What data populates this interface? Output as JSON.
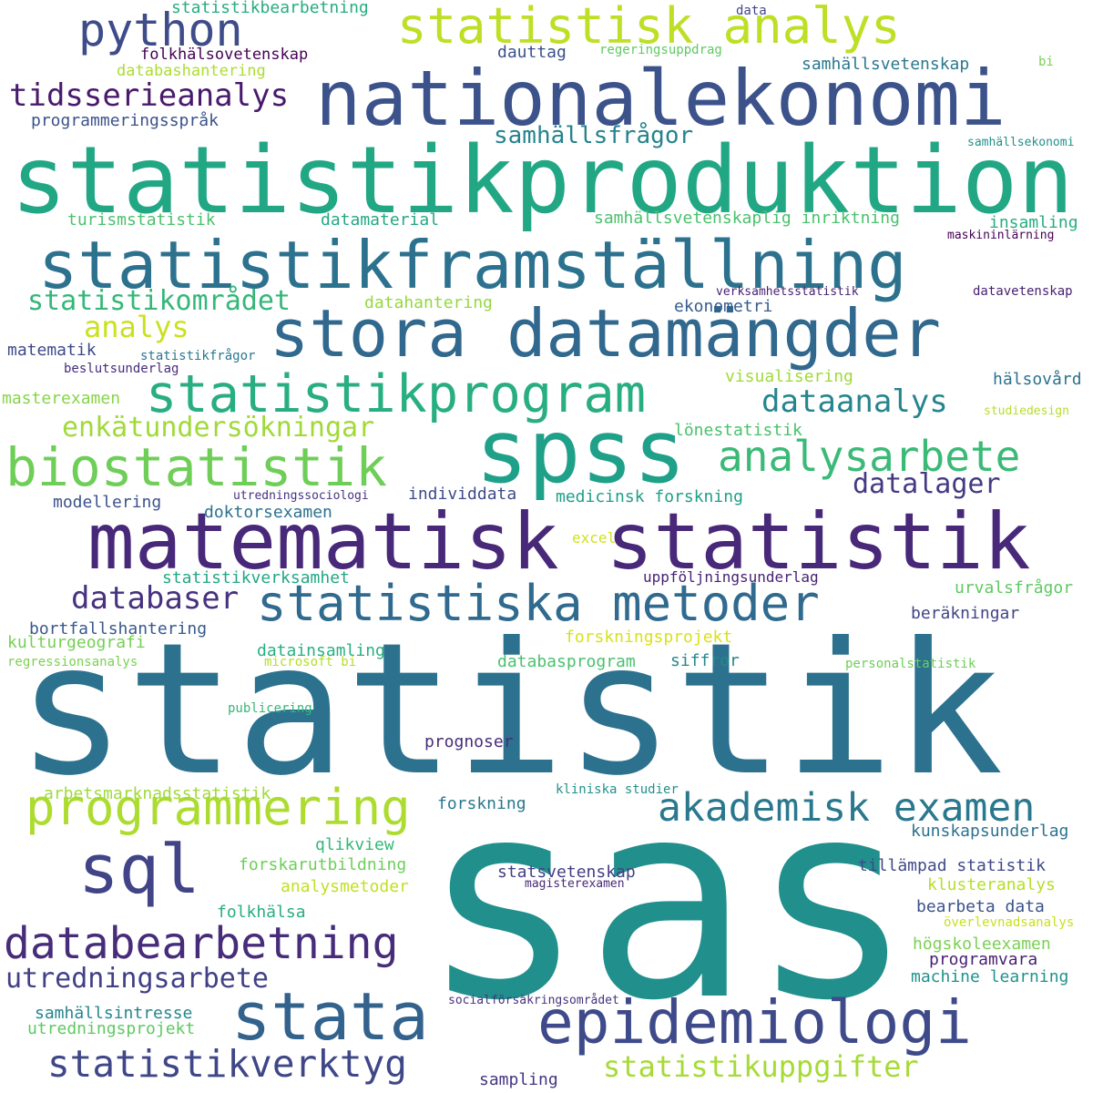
{
  "words": [
    {
      "text": "statistik",
      "color": "#2c728e"
    },
    {
      "text": "sas",
      "color": "#21908d"
    },
    {
      "text": "statistikproduktion",
      "color": "#22a785"
    },
    {
      "text": "nationalekonomi",
      "color": "#3b528b"
    },
    {
      "text": "spss",
      "color": "#1fa088"
    },
    {
      "text": "matematisk statistik",
      "color": "#482878"
    },
    {
      "text": "stora datamängder",
      "color": "#31688e"
    },
    {
      "text": "statistikframställning",
      "color": "#2c728e"
    },
    {
      "text": "statistisk analys",
      "color": "#bddf26"
    },
    {
      "text": "statistiska metoder",
      "color": "#306a8e"
    },
    {
      "text": "statistikprogram",
      "color": "#28ae80"
    },
    {
      "text": "biostatistik",
      "color": "#6ece58"
    },
    {
      "text": "programmering",
      "color": "#addc30"
    },
    {
      "text": "sql",
      "color": "#414487"
    },
    {
      "text": "epidemiologi",
      "color": "#3e4a89"
    },
    {
      "text": "stata",
      "color": "#33638d"
    },
    {
      "text": "databearbetning",
      "color": "#472c7a"
    },
    {
      "text": "akademisk examen",
      "color": "#2a788e"
    },
    {
      "text": "analysarbete",
      "color": "#3aba76"
    },
    {
      "text": "statistikverktyg",
      "color": "#3f4788"
    },
    {
      "text": "python",
      "color": "#3e4c8a"
    },
    {
      "text": "tidsserieanalys",
      "color": "#481a6c"
    },
    {
      "text": "databaser",
      "color": "#46327e"
    },
    {
      "text": "utredningsarbete",
      "color": "#424086"
    },
    {
      "text": "statistikuppgifter",
      "color": "#a5db36"
    },
    {
      "text": "statistikområdet",
      "color": "#35b779"
    },
    {
      "text": "dataanalys",
      "color": "#25858e"
    },
    {
      "text": "enkätundersökningar",
      "color": "#a0da39"
    },
    {
      "text": "analys",
      "color": "#cae11f"
    },
    {
      "text": "samhällsfrågor",
      "color": "#25838e"
    },
    {
      "text": "datalager",
      "color": "#443a83"
    },
    {
      "text": "statistikbearbetning",
      "color": "#27ad81"
    },
    {
      "text": "data",
      "color": "#404688"
    },
    {
      "text": "folkhälsovetenskap",
      "color": "#440154"
    },
    {
      "text": "dauttag",
      "color": "#3b528b"
    },
    {
      "text": "regeringsuppdrag",
      "color": "#5ec962"
    },
    {
      "text": "samhällsvetenskap",
      "color": "#2a788e"
    },
    {
      "text": "bi",
      "color": "#7ad151"
    },
    {
      "text": "databashantering",
      "color": "#addc30"
    },
    {
      "text": "programmeringsspråk",
      "color": "#3b528b"
    },
    {
      "text": "samhällsekonomi",
      "color": "#21918c"
    },
    {
      "text": "turismstatistik",
      "color": "#4ac16d"
    },
    {
      "text": "datamaterial",
      "color": "#22a884"
    },
    {
      "text": "samhällsvetenskaplig inriktning",
      "color": "#4ac16d"
    },
    {
      "text": "insamling",
      "color": "#27ad81"
    },
    {
      "text": "maskininlärning",
      "color": "#440154"
    },
    {
      "text": "datahantering",
      "color": "#95d840"
    },
    {
      "text": "verksamhetsstatistik",
      "color": "#482173"
    },
    {
      "text": "datavetenskap",
      "color": "#481f70"
    },
    {
      "text": "ekonometri",
      "color": "#365c8d"
    },
    {
      "text": "matematik",
      "color": "#3e4a89"
    },
    {
      "text": "statistikfrågor",
      "color": "#2a788e"
    },
    {
      "text": "beslutsunderlag",
      "color": "#472d7b"
    },
    {
      "text": "visualisering",
      "color": "#9fda3a"
    },
    {
      "text": "hälsovård",
      "color": "#2c728e"
    },
    {
      "text": "masterexamen",
      "color": "#86d549"
    },
    {
      "text": "studiedesign",
      "color": "#b5de2b"
    },
    {
      "text": "lönestatistik",
      "color": "#4ac16d"
    },
    {
      "text": "modellering",
      "color": "#3b528b"
    },
    {
      "text": "utredningssociologi",
      "color": "#46327e"
    },
    {
      "text": "individdata",
      "color": "#3e4a89"
    },
    {
      "text": "medicinsk forskning",
      "color": "#1f9e89"
    },
    {
      "text": "doktorsexamen",
      "color": "#2c728e"
    },
    {
      "text": "excel",
      "color": "#d0e11c"
    },
    {
      "text": "statistikverksamhet",
      "color": "#22a884"
    },
    {
      "text": "uppföljningsunderlag",
      "color": "#482173"
    },
    {
      "text": "urvalsfrågor",
      "color": "#5ec962"
    },
    {
      "text": "beräkningar",
      "color": "#414487"
    },
    {
      "text": "bortfallshantering",
      "color": "#38588c"
    },
    {
      "text": "kulturgeografi",
      "color": "#75d054"
    },
    {
      "text": "forskningsprojekt",
      "color": "#d8e219"
    },
    {
      "text": "datainsamling",
      "color": "#29af7f"
    },
    {
      "text": "regressionsanalys",
      "color": "#7ad151"
    },
    {
      "text": "microsoft bi",
      "color": "#b5de2b"
    },
    {
      "text": "databasprogram",
      "color": "#4ac16d"
    },
    {
      "text": "siffror",
      "color": "#24878e"
    },
    {
      "text": "personalstatistik",
      "color": "#6ece58"
    },
    {
      "text": "publicering",
      "color": "#35b779"
    },
    {
      "text": "prognoser",
      "color": "#472d7b"
    },
    {
      "text": "arbetsmarknadsstatistik",
      "color": "#9fda3a"
    },
    {
      "text": "kliniska studier",
      "color": "#21918c"
    },
    {
      "text": "forskning",
      "color": "#2a788e"
    },
    {
      "text": "qlikview",
      "color": "#35b779"
    },
    {
      "text": "kunskapsunderlag",
      "color": "#2c728e"
    },
    {
      "text": "forskarutbildning",
      "color": "#6ece58"
    },
    {
      "text": "statsvetenskap",
      "color": "#433e85"
    },
    {
      "text": "tillämpad statistik",
      "color": "#3e4989"
    },
    {
      "text": "magisterexamen",
      "color": "#482878"
    },
    {
      "text": "analysmetoder",
      "color": "#c2df23"
    },
    {
      "text": "klusteranalys",
      "color": "#b5de2b"
    },
    {
      "text": "folkhälsa",
      "color": "#27ad81"
    },
    {
      "text": "bearbeta data",
      "color": "#3b528b"
    },
    {
      "text": "överlevnadsanalys",
      "color": "#c8e020"
    },
    {
      "text": "högskoleexamen",
      "color": "#7ad151"
    },
    {
      "text": "programvara",
      "color": "#482173"
    },
    {
      "text": "machine learning",
      "color": "#21918c"
    },
    {
      "text": "samhällsintresse",
      "color": "#25858e"
    },
    {
      "text": "socialförsäkringsområdet",
      "color": "#46337f"
    },
    {
      "text": "utredningsprojekt",
      "color": "#5ec962"
    },
    {
      "text": "sampling",
      "color": "#453581"
    }
  ]
}
